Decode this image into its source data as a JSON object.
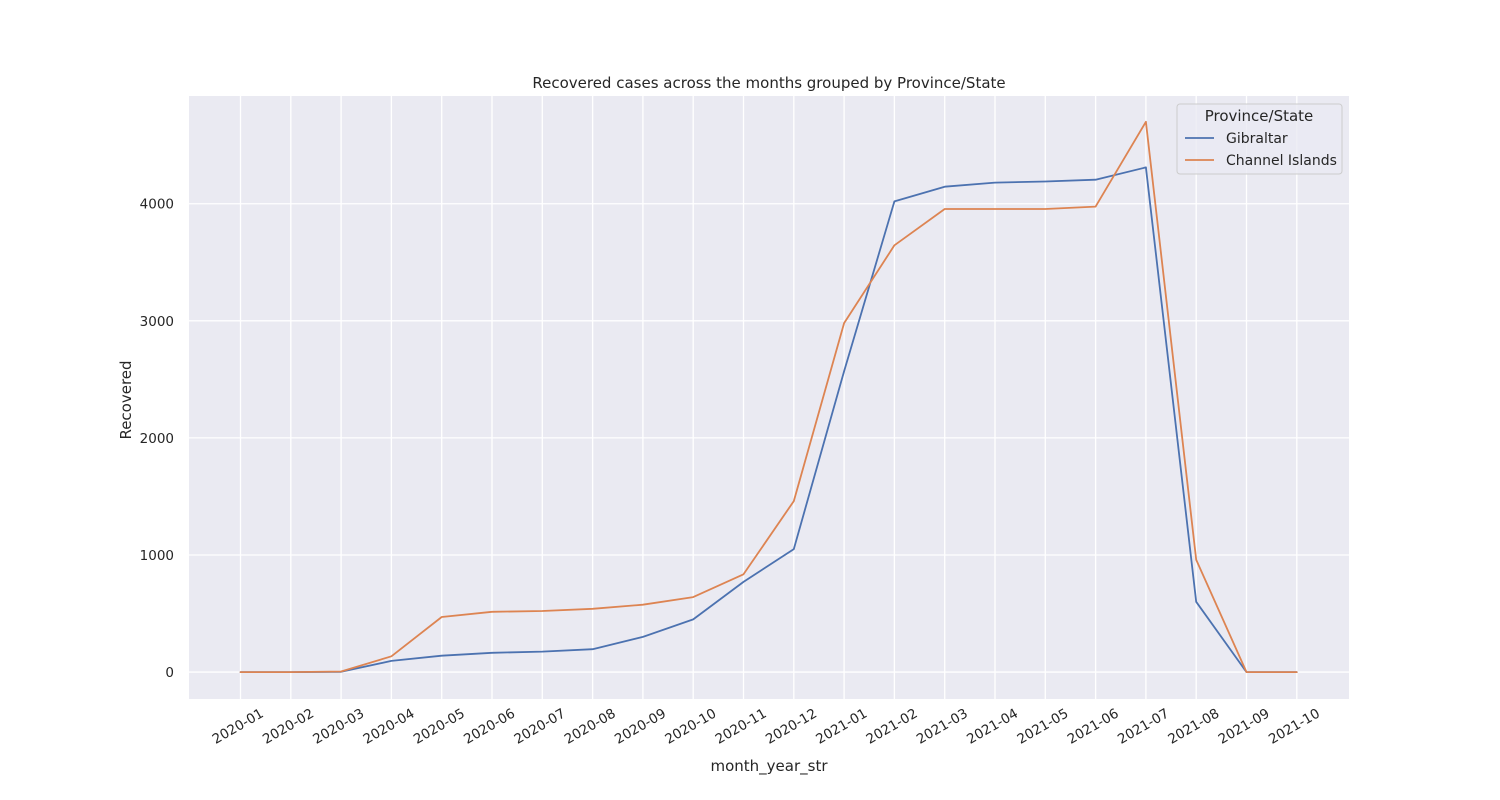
{
  "chart_data": {
    "type": "line",
    "title": "Recovered cases across the months grouped by Province/State",
    "xlabel": "month_year_str",
    "ylabel": "Recovered",
    "categories": [
      "2020-01",
      "2020-02",
      "2020-03",
      "2020-04",
      "2020-05",
      "2020-06",
      "2020-07",
      "2020-08",
      "2020-09",
      "2020-10",
      "2020-11",
      "2020-12",
      "2021-01",
      "2021-02",
      "2021-03",
      "2021-04",
      "2021-05",
      "2021-06",
      "2021-07",
      "2021-08",
      "2021-09",
      "2021-10"
    ],
    "yticks": [
      0,
      1000,
      2000,
      3000,
      4000
    ],
    "ylim": [
      -230,
      4920
    ],
    "grid": true,
    "legend": {
      "title": "Province/State",
      "placement": "top-right"
    },
    "series": [
      {
        "name": "Gibraltar",
        "color": "#4c72b0",
        "values": [
          0,
          0,
          2,
          95,
          140,
          165,
          175,
          195,
          300,
          450,
          770,
          1050,
          2570,
          4020,
          4145,
          4180,
          4190,
          4205,
          4310,
          600,
          0,
          0
        ]
      },
      {
        "name": "Channel Islands",
        "color": "#dd8452",
        "values": [
          0,
          0,
          5,
          135,
          470,
          515,
          522,
          540,
          575,
          640,
          835,
          1460,
          2980,
          3645,
          3955,
          3955,
          3955,
          3975,
          4700,
          960,
          0,
          0
        ]
      }
    ],
    "colors": {
      "plot_background": "#eaeaf2",
      "grid": "#ffffff"
    }
  }
}
